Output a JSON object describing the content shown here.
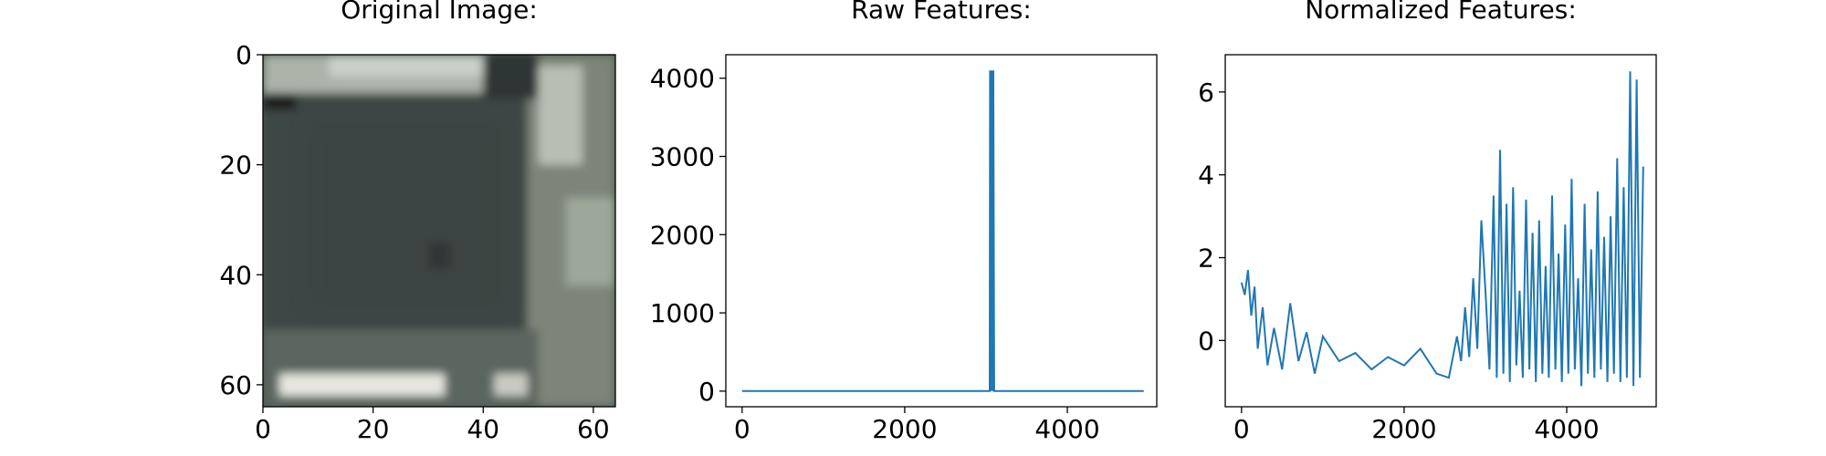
{
  "colors": {
    "series": "#1f77b4",
    "axes": "#000000",
    "background": "#ffffff"
  },
  "chart_data": [
    {
      "type": "image",
      "title": "Original Image:",
      "image_size": [
        64,
        64
      ],
      "xlim": [
        0,
        64
      ],
      "ylim": [
        64,
        0
      ],
      "xticks": [
        0,
        20,
        40,
        60
      ],
      "yticks": [
        0,
        20,
        40,
        60
      ],
      "palette": {
        "dark": "#3e4745",
        "mid": "#4b5450",
        "light": "#c8d1c8",
        "stripe": "#e6e7df",
        "accent": "#9da89a"
      }
    },
    {
      "type": "line",
      "title": "Raw Features:",
      "xlim": [
        -200,
        5100
      ],
      "ylim": [
        -200,
        4300
      ],
      "xticks": [
        0,
        2000,
        4000
      ],
      "yticks": [
        0,
        1000,
        2000,
        3000,
        4000
      ],
      "series": [
        {
          "x": [
            0,
            3045,
            3050,
            3060,
            3070,
            3075,
            3080,
            3085,
            3090,
            3100,
            3105,
            4940
          ],
          "y": [
            0,
            0,
            4100,
            0,
            4100,
            0,
            4100,
            0,
            4100,
            0,
            0,
            0
          ]
        }
      ]
    },
    {
      "type": "line",
      "title": "Normalized Features:",
      "xlim": [
        -200,
        5100
      ],
      "ylim": [
        -1.6,
        6.9
      ],
      "xticks": [
        0,
        2000,
        4000
      ],
      "yticks": [
        0,
        2,
        4,
        6
      ],
      "series": [
        {
          "x": [
            0,
            40,
            80,
            120,
            160,
            200,
            260,
            320,
            400,
            500,
            600,
            700,
            800,
            900,
            1000,
            1200,
            1400,
            1600,
            1800,
            2000,
            2200,
            2400,
            2550,
            2650,
            2700,
            2750,
            2800,
            2850,
            2900,
            2950,
            3000,
            3050,
            3100,
            3140,
            3180,
            3220,
            3260,
            3300,
            3340,
            3380,
            3420,
            3460,
            3500,
            3540,
            3580,
            3620,
            3660,
            3700,
            3740,
            3780,
            3820,
            3860,
            3900,
            3940,
            3980,
            4020,
            4060,
            4100,
            4140,
            4180,
            4220,
            4260,
            4300,
            4340,
            4380,
            4420,
            4460,
            4500,
            4540,
            4580,
            4620,
            4660,
            4700,
            4740,
            4780,
            4820,
            4860,
            4900,
            4940
          ],
          "y": [
            1.4,
            1.1,
            1.7,
            0.6,
            1.3,
            -0.2,
            0.8,
            -0.6,
            0.3,
            -0.7,
            0.9,
            -0.5,
            0.2,
            -0.8,
            0.1,
            -0.5,
            -0.3,
            -0.7,
            -0.4,
            -0.6,
            -0.2,
            -0.8,
            -0.9,
            0.1,
            -0.5,
            0.8,
            -0.4,
            1.5,
            -0.2,
            2.9,
            1.2,
            -0.7,
            3.5,
            -0.9,
            4.6,
            -0.8,
            3.3,
            -1.0,
            3.7,
            -0.6,
            1.2,
            -0.9,
            3.4,
            -0.7,
            2.6,
            -1.0,
            2.9,
            -0.8,
            1.8,
            -0.9,
            3.5,
            -0.7,
            2.1,
            -1.0,
            2.8,
            -0.8,
            3.9,
            -0.7,
            1.5,
            -1.1,
            3.3,
            -0.8,
            2.2,
            -0.9,
            3.6,
            -0.7,
            2.5,
            -1.0,
            3.0,
            -0.8,
            4.4,
            -1.0,
            3.7,
            -0.9,
            6.5,
            -1.1,
            6.3,
            -0.9,
            4.2
          ]
        }
      ]
    }
  ]
}
